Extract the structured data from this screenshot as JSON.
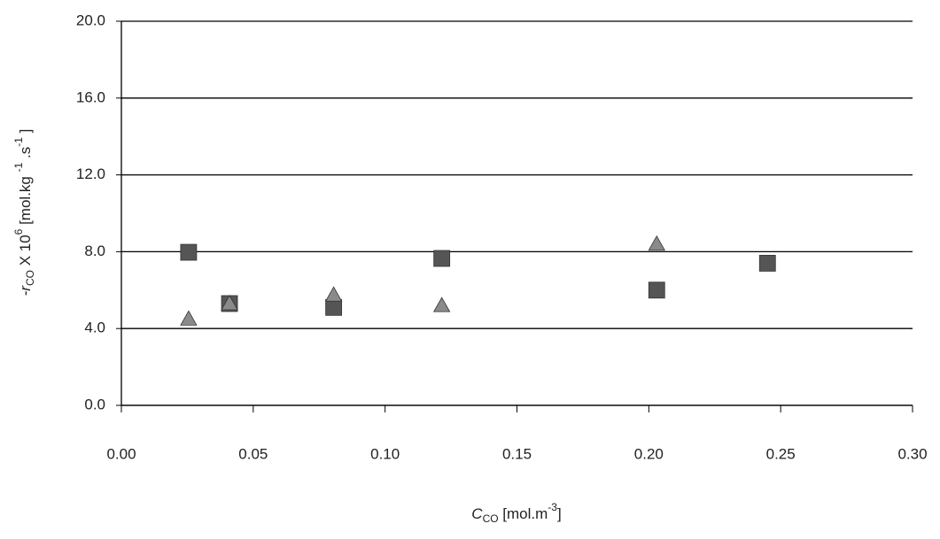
{
  "chart_data": {
    "type": "scatter",
    "xlabel_parts": [
      "C",
      "CO",
      " [mol.m",
      "-3",
      "]"
    ],
    "ylabel_parts": [
      "-r",
      "CO",
      " X 10",
      "6",
      " [mol.kg ",
      "-1",
      " .s",
      "-1",
      " ]"
    ],
    "series": [
      {
        "marker": "square",
        "color": "#555555",
        "x": [
          0.0255,
          0.041,
          0.0805,
          0.1215,
          0.203,
          0.245
        ],
        "values": [
          7.97,
          5.3,
          5.1,
          7.65,
          6.0,
          7.4
        ]
      },
      {
        "marker": "triangle",
        "color": "#8a8a8a",
        "x": [
          0.0255,
          0.041,
          0.0805,
          0.1215,
          0.203
        ],
        "values": [
          4.5,
          5.3,
          5.75,
          5.2,
          8.4
        ]
      }
    ],
    "xlim": [
      0,
      0.3
    ],
    "xticks": [
      {
        "value": 0,
        "label": "0.00"
      },
      {
        "value": 0.05,
        "label": "0.05"
      },
      {
        "value": 0.1,
        "label": "0.10"
      },
      {
        "value": 0.15,
        "label": "0.15"
      },
      {
        "value": 0.2,
        "label": "0.20"
      },
      {
        "value": 0.25,
        "label": "0.25"
      },
      {
        "value": 0.3,
        "label": "0.30"
      }
    ],
    "ylim": [
      0,
      20
    ],
    "yticks": [
      {
        "value": 0,
        "label": "0.0"
      },
      {
        "value": 4,
        "label": "4.0"
      },
      {
        "value": 8,
        "label": "8.0"
      },
      {
        "value": 12,
        "label": "12.0"
      },
      {
        "value": 16,
        "label": "16.0"
      },
      {
        "value": 20,
        "label": "20.0"
      }
    ],
    "grid": true
  }
}
